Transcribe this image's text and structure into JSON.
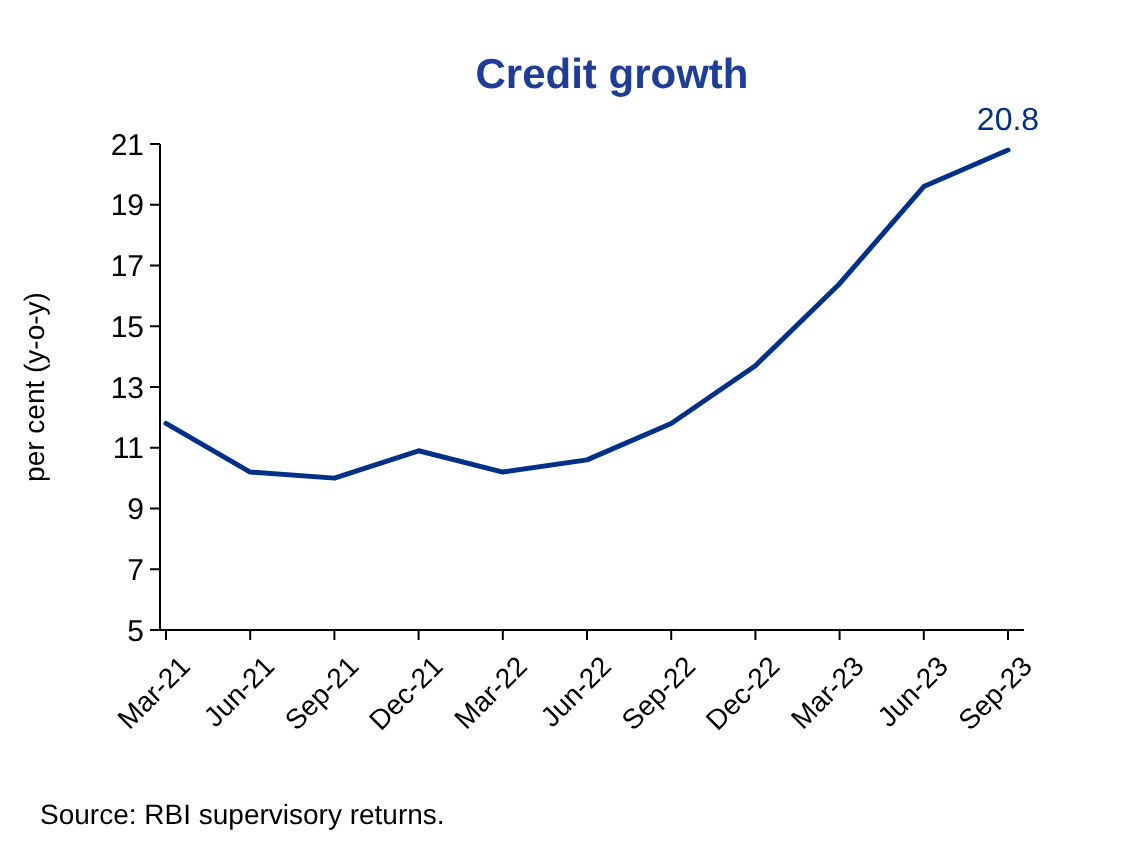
{
  "chart_data": {
    "type": "line",
    "title": "Credit growth",
    "ylabel": "per cent (y-o-y)",
    "categories": [
      "Mar-21",
      "Jun-21",
      "Sep-21",
      "Dec-21",
      "Mar-22",
      "Jun-22",
      "Sep-22",
      "Dec-22",
      "Mar-23",
      "Jun-23",
      "Sep-23"
    ],
    "series": [
      {
        "color": "#003087",
        "values": [
          11.8,
          10.2,
          10.0,
          10.9,
          10.2,
          10.6,
          11.8,
          13.7,
          16.4,
          19.6,
          20.8
        ]
      }
    ],
    "ylim": [
      5,
      21
    ],
    "yticks": [
      5,
      7,
      9,
      11,
      13,
      15,
      17,
      19,
      21
    ],
    "grid": false,
    "marker": "none",
    "line_style": "solid",
    "annotations": [
      {
        "text": "20.8",
        "x": "Sep-23",
        "y": 20.8
      },
      "Source: RBI supervisory returns."
    ]
  }
}
